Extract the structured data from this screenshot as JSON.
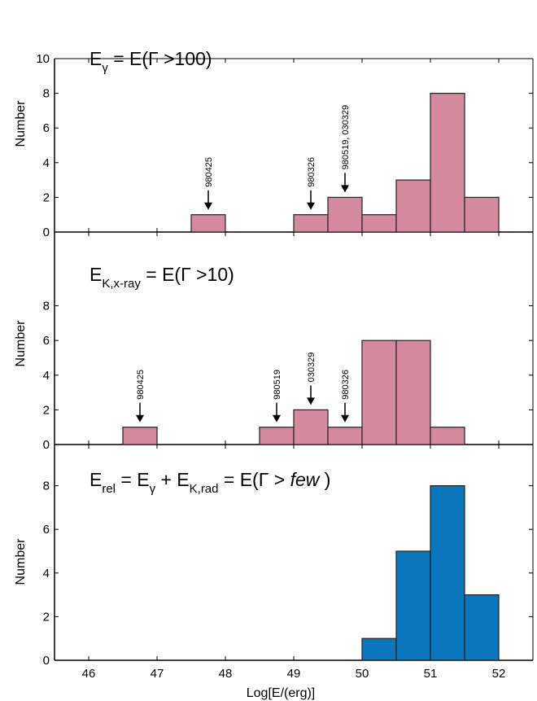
{
  "chart_data": [
    {
      "type": "bar",
      "ylabel": "Number",
      "xlabel": "",
      "xlim": [
        45.5,
        52.5
      ],
      "ylim": [
        0,
        10
      ],
      "yticks": [
        "0",
        "2",
        "4",
        "6",
        "8",
        "10"
      ],
      "title_main": "E",
      "title_sub": "γ",
      "title_rest": " = E(Γ >100)",
      "bars": [
        {
          "x0": 47.5,
          "x1": 48.0,
          "value": 1
        },
        {
          "x0": 49.0,
          "x1": 49.5,
          "value": 1
        },
        {
          "x0": 49.5,
          "x1": 50.0,
          "value": 2
        },
        {
          "x0": 50.0,
          "x1": 50.5,
          "value": 1
        },
        {
          "x0": 50.5,
          "x1": 51.0,
          "value": 3
        },
        {
          "x0": 51.0,
          "x1": 51.5,
          "value": 8
        },
        {
          "x0": 51.5,
          "x1": 52.0,
          "value": 2
        }
      ],
      "annotations": [
        {
          "label": "980425",
          "x": 47.75,
          "y": 1
        },
        {
          "label": "980326",
          "x": 49.25,
          "y": 1
        },
        {
          "label": "980519, 030329",
          "x": 49.75,
          "y": 2
        }
      ],
      "color": "#d48a9c"
    },
    {
      "type": "bar",
      "ylabel": "Number",
      "xlabel": "",
      "xlim": [
        45.5,
        52.5
      ],
      "ylim": [
        0,
        10
      ],
      "yticks": [
        "0",
        "2",
        "4",
        "6",
        "8"
      ],
      "title_main": "E",
      "title_sub": "K,x-ray",
      "title_rest": " = E(Γ >10)",
      "bars": [
        {
          "x0": 46.5,
          "x1": 47.0,
          "value": 1
        },
        {
          "x0": 48.5,
          "x1": 49.0,
          "value": 1
        },
        {
          "x0": 49.0,
          "x1": 49.5,
          "value": 2
        },
        {
          "x0": 49.5,
          "x1": 50.0,
          "value": 1
        },
        {
          "x0": 50.0,
          "x1": 50.5,
          "value": 6
        },
        {
          "x0": 50.5,
          "x1": 51.0,
          "value": 6
        },
        {
          "x0": 51.0,
          "x1": 51.5,
          "value": 1
        }
      ],
      "annotations": [
        {
          "label": "980425",
          "x": 46.75,
          "y": 1
        },
        {
          "label": "980519",
          "x": 48.75,
          "y": 1
        },
        {
          "label": "030329",
          "x": 49.25,
          "y": 2
        },
        {
          "label": "980326",
          "x": 49.75,
          "y": 1
        }
      ],
      "color": "#d48a9c"
    },
    {
      "type": "bar",
      "ylabel": "Number",
      "xlabel": "Log[E/(erg)]",
      "xlim": [
        45.5,
        52.5
      ],
      "ylim": [
        0,
        10
      ],
      "yticks": [
        "0",
        "2",
        "4",
        "6",
        "8"
      ],
      "xticks": [
        "46",
        "47",
        "48",
        "49",
        "50",
        "51",
        "52"
      ],
      "title_main": "E",
      "title_sub": "rel",
      "title_rest": " = E",
      "title_sub2": "γ",
      "title_rest2": " + E",
      "title_sub3": "K,rad",
      "title_rest3": " = E(Γ > ",
      "title_italic": "few",
      "title_end": " )",
      "bars": [
        {
          "x0": 50.0,
          "x1": 50.5,
          "value": 1
        },
        {
          "x0": 50.5,
          "x1": 51.0,
          "value": 5
        },
        {
          "x0": 51.0,
          "x1": 51.5,
          "value": 8
        },
        {
          "x0": 51.5,
          "x1": 52.0,
          "value": 3
        }
      ],
      "annotations": [],
      "color": "#0a76bd"
    }
  ]
}
